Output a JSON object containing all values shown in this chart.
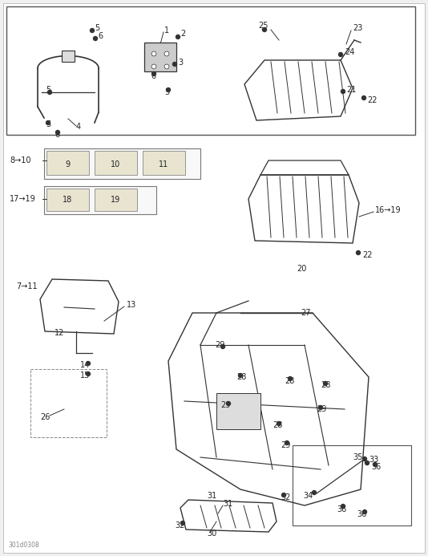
{
  "bg_color": "#f0f0f0",
  "page_bg": "#ffffff",
  "line_color": "#333333",
  "border_color": "#555555",
  "text_color": "#222222",
  "label_fontsize": 7,
  "title_fontsize": 8,
  "watermark": "301d0308",
  "annotations": {
    "top_box": {
      "parts_left": [
        "1",
        "2",
        "3",
        "4",
        "5",
        "5",
        "5",
        "6",
        "6"
      ],
      "parts_right": [
        "21",
        "22",
        "23",
        "24",
        "25"
      ]
    },
    "mid_left": {
      "labels": [
        "8→10",
        "9",
        "10",
        "11",
        "17→19",
        "18",
        "19"
      ]
    },
    "mid_right": {
      "labels": [
        "16→19",
        "20",
        "22"
      ]
    },
    "bottom": {
      "labels": [
        "7→11",
        "12",
        "13",
        "14",
        "15",
        "26",
        "27",
        "28",
        "28",
        "28",
        "29",
        "29",
        "29",
        "29",
        "30",
        "31",
        "31",
        "32",
        "32",
        "33",
        "34",
        "35",
        "36",
        "36"
      ]
    }
  }
}
